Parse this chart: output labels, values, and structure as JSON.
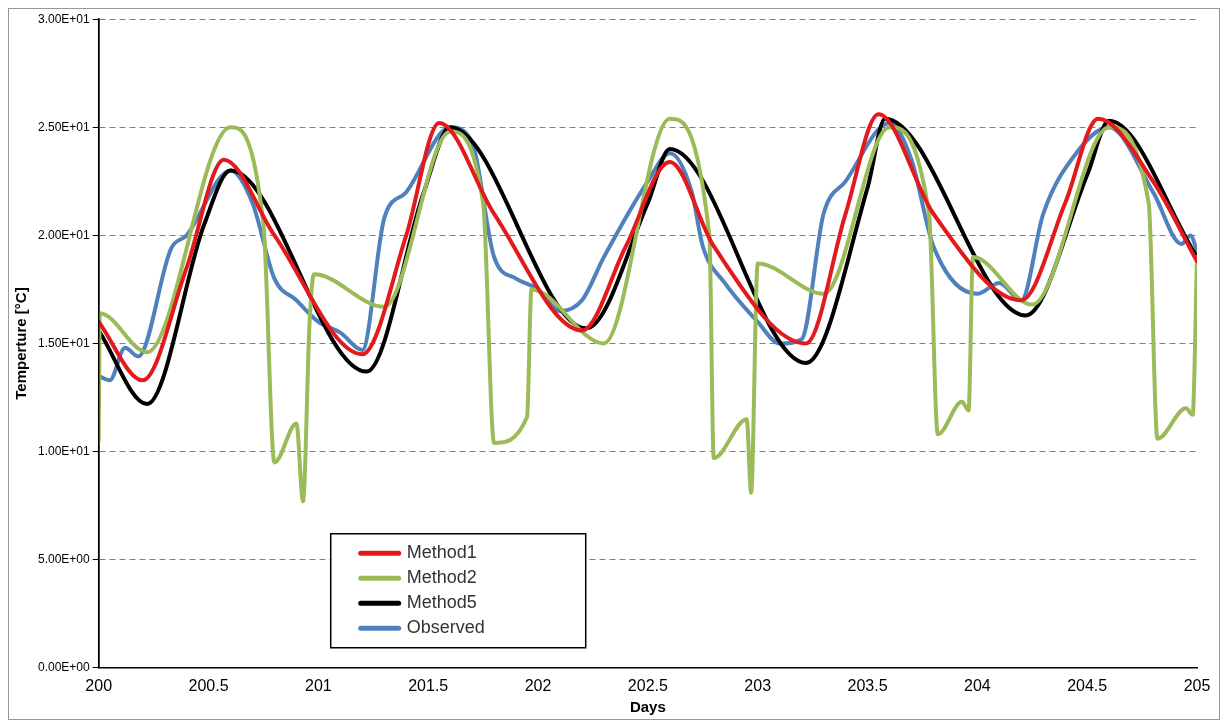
{
  "chart_data": {
    "type": "line",
    "xlabel": "Days",
    "ylabel": "Temperture [°C]",
    "xlim": [
      200,
      205
    ],
    "xticks": [
      200,
      200.5,
      201,
      201.5,
      202,
      202.5,
      203,
      203.5,
      204,
      204.5,
      205
    ],
    "ylim": [
      0,
      30
    ],
    "yticks": [
      {
        "value": 0,
        "label": "0.00E+00"
      },
      {
        "value": 5,
        "label": "5.00E+00"
      },
      {
        "value": 10,
        "label": "1.00E+01"
      },
      {
        "value": 15,
        "label": "1.50E+01"
      },
      {
        "value": 20,
        "label": "2.00E+01"
      },
      {
        "value": 25,
        "label": "2.50E+01"
      },
      {
        "value": 30,
        "label": "3.00E+01"
      }
    ],
    "grid": "y",
    "legend": "bottom left",
    "line_style": "solid",
    "marker": "none",
    "series": [
      {
        "name": "Method1",
        "color": "#e31a1c",
        "x": [
          200,
          200.2,
          200.4,
          200.57,
          200.8,
          201.2,
          201.4,
          201.55,
          201.8,
          202.2,
          202.4,
          202.6,
          202.8,
          203.22,
          203.4,
          203.55,
          203.8,
          204.2,
          204.4,
          204.55,
          204.8,
          205
        ],
        "values": [
          16.0,
          13.3,
          18.5,
          23.5,
          20.0,
          14.5,
          20.0,
          25.2,
          21.0,
          15.6,
          19.5,
          23.4,
          19.5,
          15.0,
          21.0,
          25.6,
          21.0,
          17.0,
          21.5,
          25.4,
          22.5,
          18.8
        ]
      },
      {
        "name": "Method2",
        "color": "#9bbb59",
        "x": [
          200,
          200.005,
          200.22,
          200.6,
          200.75,
          200.8,
          200.9,
          200.93,
          200.96,
          200.98,
          201.3,
          201.6,
          201.75,
          201.8,
          201.95,
          201.97,
          202.3,
          202.6,
          202.78,
          202.8,
          202.95,
          202.97,
          203.0,
          203.3,
          203.6,
          203.78,
          203.82,
          203.93,
          203.96,
          203.98,
          204.25,
          204.6,
          204.78,
          204.82,
          204.95,
          204.98,
          205
        ],
        "values": [
          10.5,
          16.4,
          14.6,
          25.0,
          20.5,
          9.5,
          11.3,
          7.7,
          16.0,
          18.2,
          16.7,
          24.8,
          21.5,
          10.4,
          11.6,
          17.5,
          15.0,
          25.4,
          20.0,
          9.7,
          11.5,
          8.1,
          18.7,
          17.3,
          25.0,
          21.0,
          10.8,
          12.3,
          11.9,
          19.0,
          16.8,
          25.0,
          21.5,
          10.6,
          12.0,
          11.7,
          19.0
        ]
      },
      {
        "name": "Method5",
        "color": "#000000",
        "x": [
          200,
          200.22,
          200.48,
          200.6,
          201.22,
          201.48,
          201.6,
          202.22,
          202.5,
          202.6,
          203.22,
          203.5,
          203.58,
          204.22,
          204.5,
          204.6,
          205
        ],
        "values": [
          15.6,
          12.2,
          20.5,
          23.0,
          13.7,
          22.0,
          25.0,
          15.7,
          21.5,
          24.0,
          14.1,
          22.2,
          25.4,
          16.3,
          22.8,
          25.3,
          19.0
        ]
      },
      {
        "name": "Observed",
        "color": "#4f81bd",
        "x": [
          200,
          200.05,
          200.12,
          200.18,
          200.33,
          200.4,
          200.6,
          200.7,
          200.8,
          200.9,
          201.0,
          201.1,
          201.2,
          201.3,
          201.4,
          201.6,
          201.7,
          201.8,
          201.9,
          202.0,
          202.1,
          202.2,
          202.3,
          202.5,
          202.6,
          202.7,
          202.75,
          202.85,
          203.0,
          203.1,
          203.2,
          203.3,
          203.4,
          203.6,
          203.7,
          203.8,
          204.0,
          204.1,
          204.2,
          204.3,
          204.45,
          204.6,
          204.8,
          204.93,
          204.97,
          205
        ],
        "values": [
          13.5,
          13.3,
          14.8,
          14.4,
          19.4,
          20.0,
          23.0,
          21.5,
          18.0,
          17.0,
          16.0,
          15.5,
          14.7,
          20.8,
          22.0,
          25.0,
          24.3,
          19.0,
          18.0,
          17.5,
          16.5,
          17.0,
          19.0,
          22.5,
          23.8,
          22.0,
          19.5,
          17.8,
          16.0,
          15.0,
          15.2,
          21.0,
          22.5,
          25.2,
          23.5,
          19.5,
          17.3,
          17.8,
          17.0,
          21.0,
          23.8,
          25.0,
          22.0,
          19.6,
          20.0,
          19.3
        ]
      }
    ]
  }
}
